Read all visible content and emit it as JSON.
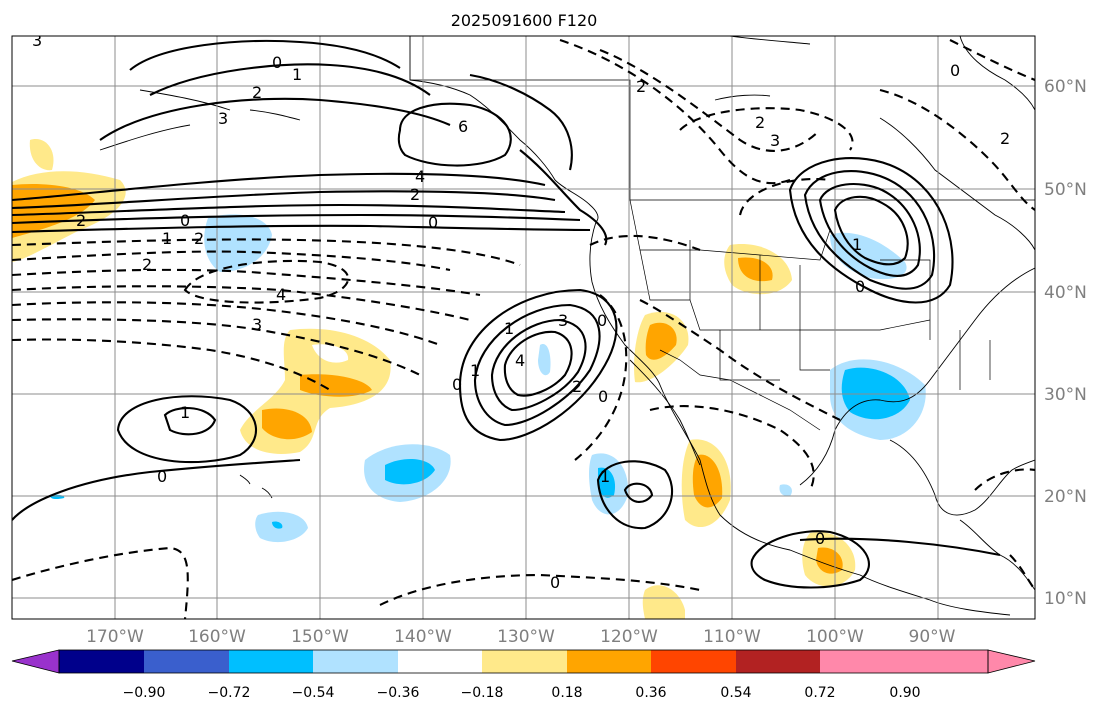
{
  "title": "2025091600 F120",
  "lat_labels": [
    "60°N",
    "50°N",
    "40°N",
    "30°N",
    "20°N",
    "10°N"
  ],
  "lon_labels": [
    "170°W",
    "160°W",
    "150°W",
    "140°W",
    "130°W",
    "120°W",
    "110°W",
    "100°W",
    "90°W"
  ],
  "colorbar": {
    "colors": [
      "#9932cc",
      "#00008b",
      "#3a5fcd",
      "#00bfff",
      "#b0e2ff",
      "#ffffff",
      "#ffe98a",
      "#ffa500",
      "#ff4500",
      "#b22222",
      "#ff88aa"
    ],
    "tick_labels": [
      "−0.90",
      "−0.72",
      "−0.54",
      "−0.36",
      "−0.18",
      "0.18",
      "0.36",
      "0.54",
      "0.72",
      "0.90"
    ]
  },
  "contour_labels": [
    "3",
    "0",
    "1",
    "2",
    "3",
    "6",
    "4",
    "2",
    "0",
    "2",
    "0",
    "1",
    "2",
    "2",
    "4",
    "3",
    "1",
    "0",
    "3",
    "4",
    "1",
    "0",
    "2",
    "0",
    "1",
    "2",
    "3",
    "2",
    "0",
    "1",
    "0",
    "0",
    "1",
    "0",
    "0",
    "2"
  ],
  "colors": {
    "grid": "#8c8c8c",
    "axis_label": "#7f7f7f"
  }
}
